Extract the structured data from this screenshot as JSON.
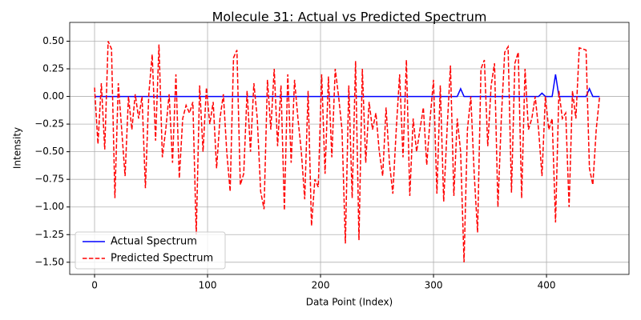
{
  "chart_data": {
    "type": "line",
    "title": "Molecule 31: Actual vs Predicted Spectrum",
    "xlabel": "Data Point (Index)",
    "ylabel": "Intensity",
    "x": [
      0,
      3,
      6,
      9,
      12,
      15,
      18,
      21,
      24,
      27,
      30,
      33,
      36,
      39,
      42,
      45,
      48,
      51,
      54,
      57,
      60,
      63,
      66,
      69,
      72,
      75,
      78,
      81,
      84,
      87,
      90,
      93,
      96,
      99,
      102,
      105,
      108,
      111,
      114,
      117,
      120,
      123,
      126,
      129,
      132,
      135,
      138,
      141,
      144,
      147,
      150,
      153,
      156,
      159,
      162,
      165,
      168,
      171,
      174,
      177,
      180,
      183,
      186,
      189,
      192,
      195,
      198,
      201,
      204,
      207,
      210,
      213,
      216,
      219,
      222,
      225,
      228,
      231,
      234,
      237,
      240,
      243,
      246,
      249,
      252,
      255,
      258,
      261,
      264,
      267,
      270,
      273,
      276,
      279,
      282,
      285,
      288,
      291,
      294,
      297,
      300,
      303,
      306,
      309,
      312,
      315,
      318,
      321,
      324,
      327,
      330,
      333,
      336,
      339,
      342,
      345,
      348,
      351,
      354,
      357,
      360,
      363,
      366,
      369,
      372,
      375,
      378,
      381,
      384,
      387,
      390,
      393,
      396,
      399,
      402,
      405,
      408,
      411,
      414,
      417,
      420,
      423,
      426,
      429,
      432,
      435,
      438,
      441,
      444,
      447
    ],
    "series": [
      {
        "name": "Actual Spectrum",
        "color": "#0000ff",
        "dash": false,
        "values": [
          0,
          0,
          0,
          0,
          0,
          0,
          0,
          0,
          0,
          0,
          0,
          0,
          0,
          0,
          0,
          0,
          0,
          0,
          0,
          0,
          0,
          0,
          0,
          0,
          0,
          0,
          0,
          0,
          0,
          0,
          0,
          0,
          0,
          0,
          0,
          0,
          0,
          0,
          0,
          0,
          0,
          0,
          0,
          0,
          0,
          0,
          0,
          0,
          0,
          0,
          0,
          0,
          0,
          0,
          0,
          0,
          0,
          0,
          0,
          0,
          0,
          0,
          0,
          0,
          0,
          0,
          0,
          0,
          0,
          0,
          0,
          0,
          0,
          0,
          0,
          0,
          0,
          0,
          0,
          0,
          0,
          0,
          0,
          0,
          0,
          0,
          0,
          0,
          0,
          0,
          0,
          0,
          0,
          0,
          0,
          0,
          0,
          0,
          0,
          0,
          0,
          0,
          0,
          0,
          0,
          0,
          0,
          0,
          0.07,
          0,
          0,
          0,
          0,
          0,
          0,
          0,
          0,
          0,
          0,
          0,
          0,
          0,
          0,
          0,
          0,
          0,
          0,
          0,
          0,
          0,
          0,
          0,
          0.03,
          0,
          0,
          0,
          0.2,
          0,
          0,
          0,
          0,
          0,
          0,
          0,
          0,
          0,
          0.07,
          0,
          0,
          0
        ]
      },
      {
        "name": "Predicted Spectrum",
        "color": "#ff0000",
        "dash": true,
        "values": [
          0.08,
          -0.43,
          0.12,
          -0.48,
          0.5,
          0.43,
          -0.92,
          0.12,
          -0.3,
          -0.72,
          0.0,
          -0.3,
          0.02,
          -0.2,
          0.0,
          -0.83,
          0.02,
          0.38,
          -0.4,
          0.47,
          -0.55,
          -0.3,
          0.02,
          -0.6,
          0.2,
          -0.74,
          -0.2,
          -0.08,
          -0.15,
          -0.05,
          -1.25,
          0.1,
          -0.5,
          0.08,
          -0.25,
          -0.05,
          -0.65,
          -0.2,
          0.02,
          -0.5,
          -0.86,
          0.35,
          0.42,
          -0.8,
          -0.7,
          0.05,
          -0.5,
          0.12,
          -0.2,
          -0.86,
          -1.02,
          0.15,
          -0.3,
          0.25,
          -0.45,
          0.1,
          -1.03,
          0.2,
          -0.6,
          0.15,
          -0.2,
          -0.5,
          -0.93,
          0.05,
          -1.17,
          -0.75,
          -0.82,
          0.2,
          -0.7,
          0.18,
          -0.55,
          0.25,
          0.0,
          -0.3,
          -1.33,
          0.1,
          -0.92,
          0.32,
          -1.3,
          0.25,
          -0.6,
          -0.05,
          -0.3,
          -0.15,
          -0.5,
          -0.72,
          -0.1,
          -0.6,
          -0.88,
          -0.3,
          0.2,
          -0.55,
          0.33,
          -0.9,
          -0.2,
          -0.5,
          -0.3,
          -0.1,
          -0.62,
          -0.2,
          0.15,
          -0.88,
          0.1,
          -0.95,
          -0.3,
          0.28,
          -0.9,
          -0.2,
          -0.5,
          -1.5,
          -0.3,
          0.0,
          -0.7,
          -1.23,
          0.25,
          0.33,
          -0.45,
          0.1,
          0.3,
          -1.0,
          -0.2,
          0.4,
          0.45,
          -0.87,
          0.3,
          0.4,
          -0.92,
          0.25,
          -0.3,
          -0.2,
          0.0,
          -0.3,
          -0.72,
          0.0,
          -0.3,
          -0.2,
          -1.14,
          0.05,
          -0.2,
          -0.15,
          -1.0,
          0.05,
          -0.2,
          0.44,
          0.43,
          0.42,
          -0.65,
          -0.8,
          -0.3,
          0.0
        ]
      }
    ],
    "xlim": [
      -22,
      473
    ],
    "ylim": [
      -1.61,
      0.67
    ],
    "xticks": [
      0,
      100,
      200,
      300,
      400
    ],
    "yticks": [
      {
        "value": -1.5,
        "label": "−1.50"
      },
      {
        "value": -1.25,
        "label": "−1.25"
      },
      {
        "value": -1.0,
        "label": "−1.00"
      },
      {
        "value": -0.75,
        "label": "−0.75"
      },
      {
        "value": -0.5,
        "label": "−0.50"
      },
      {
        "value": -0.25,
        "label": "−0.25"
      },
      {
        "value": 0,
        "label": "0.00"
      },
      {
        "value": 0.25,
        "label": "0.25"
      },
      {
        "value": 0.5,
        "label": "0.50"
      }
    ],
    "grid": true,
    "legend": "lower left"
  }
}
